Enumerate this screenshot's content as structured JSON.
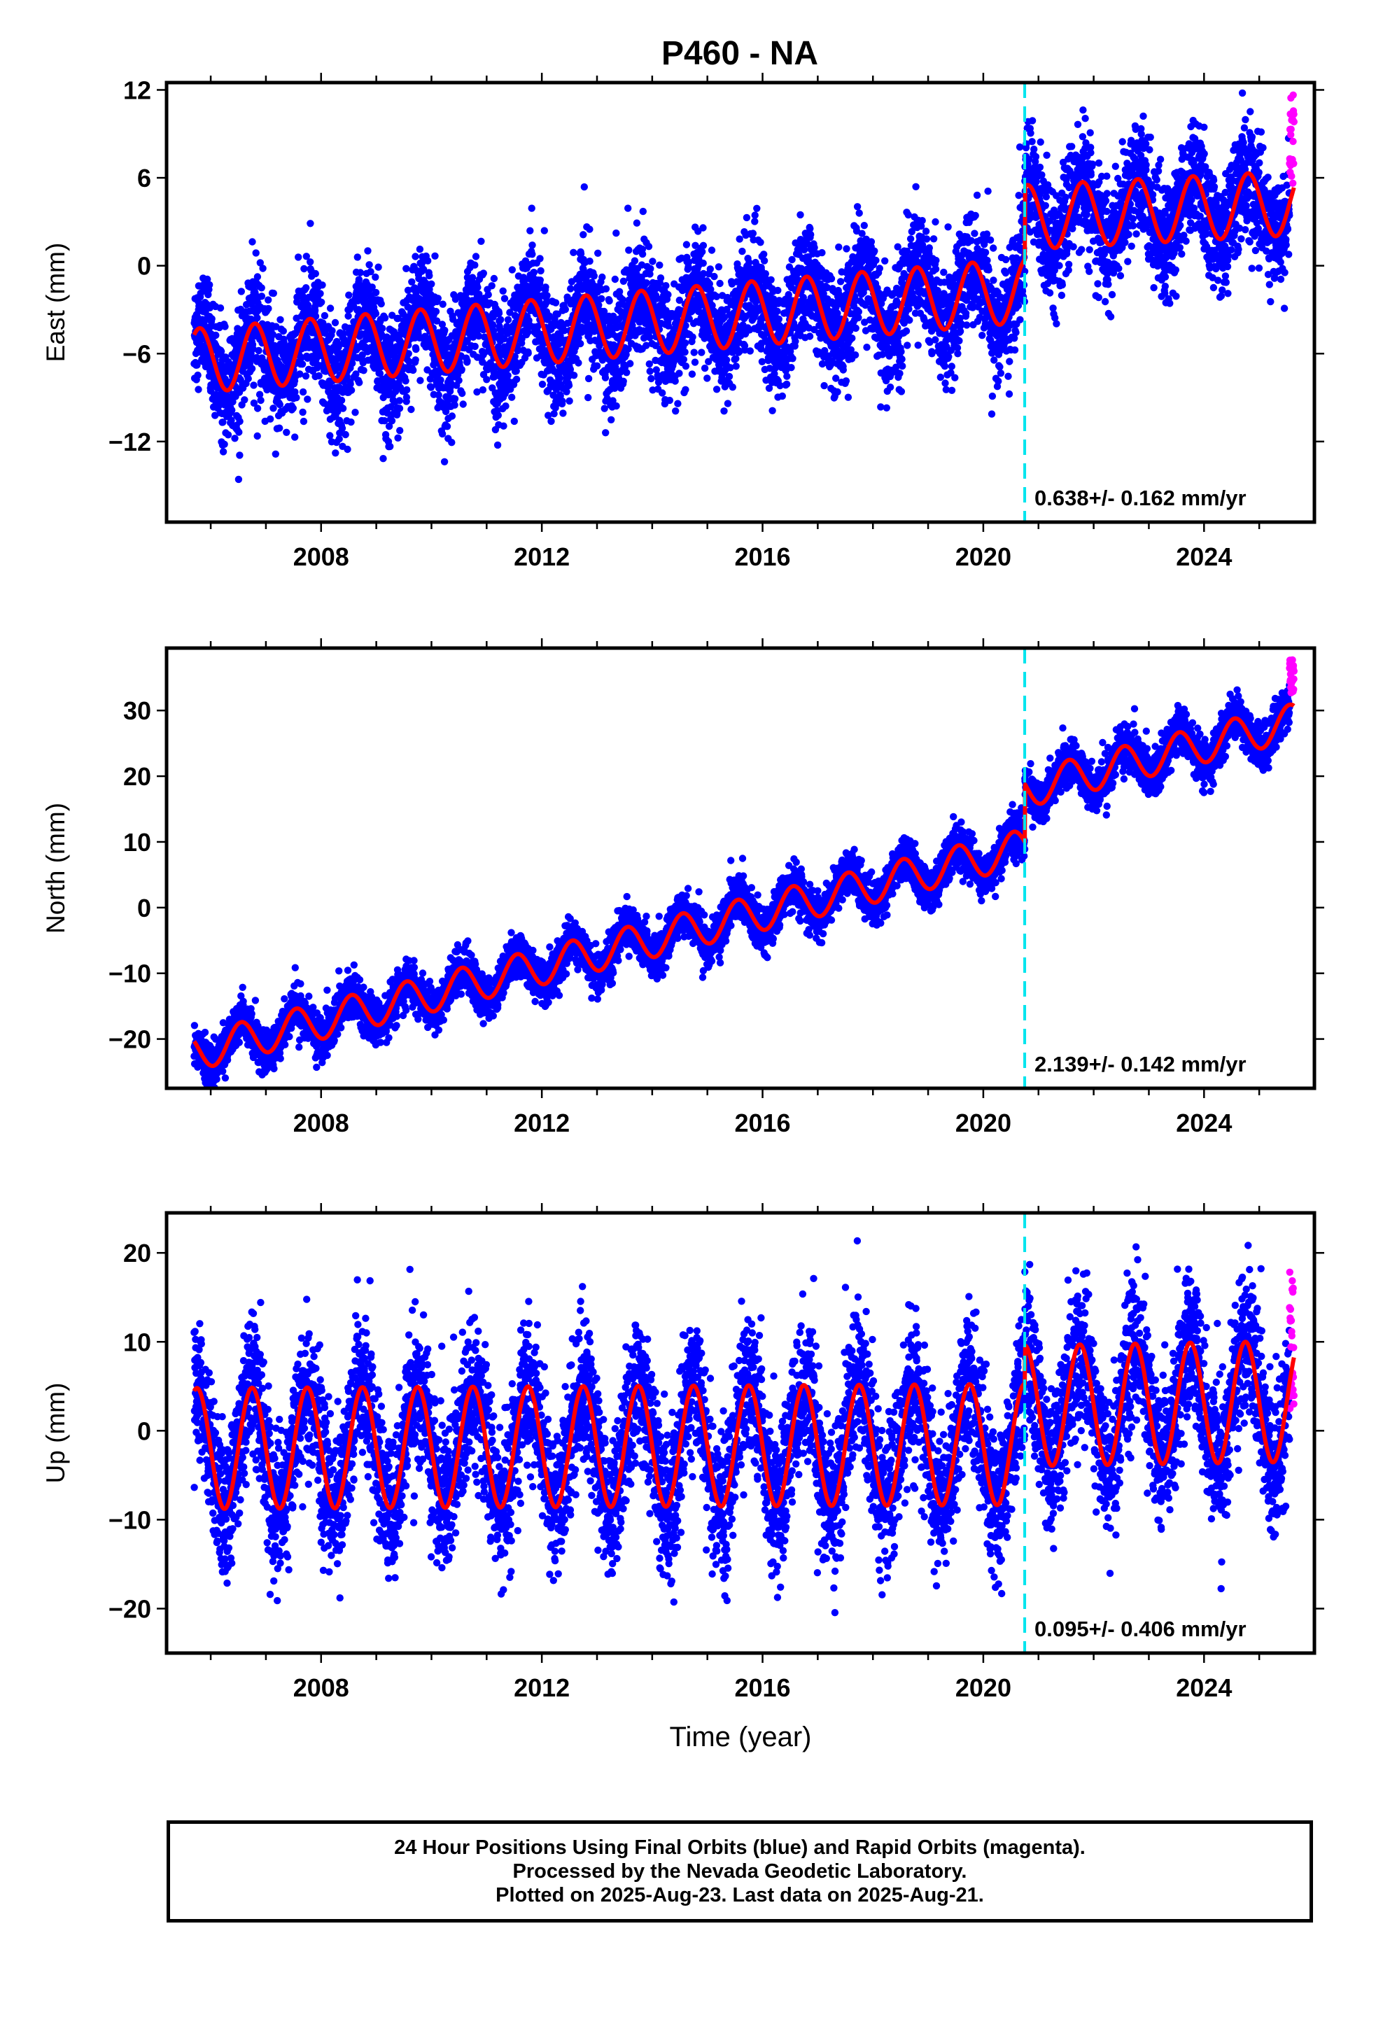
{
  "title": "P460 - NA",
  "colors": {
    "final_orbits": "#0000ff",
    "rapid_orbits": "#ff00ff",
    "model": "#ff0000",
    "event_line": "#00e5ee",
    "axes": "#000000"
  },
  "footer": {
    "line1": "24 Hour Positions Using Final Orbits (blue) and Rapid Orbits (magenta).",
    "line2": "Processed by the Nevada Geodetic Laboratory.",
    "line3": "Plotted on 2025-Aug-23. Last data on 2025-Aug-21."
  },
  "chart_data": [
    {
      "type": "scatter",
      "component": "east",
      "ylabel": "East (mm)",
      "xlabel": "",
      "xlim": [
        2005.2,
        2026.0
      ],
      "ylim": [
        -17.5,
        12.5
      ],
      "yticks": [
        -12,
        -6,
        0,
        6,
        12
      ],
      "xticks": [
        2008,
        2012,
        2016,
        2020,
        2024
      ],
      "rate_label": "0.638+/- 0.162 mm/yr",
      "event_line_x": 2020.75,
      "model": {
        "x0": 2005.7,
        "x1": 2025.63,
        "offset_pre": -6.5,
        "slope_pre": 0.32,
        "offset_post": 3.3,
        "slope_post": 0.2,
        "amplitude": 2.2,
        "phase_peak": 0.8,
        "scatter": 1.9
      },
      "series": [
        {
          "name": "Final Orbits (blue)",
          "x_range": [
            2005.7,
            2025.55
          ],
          "values_summary": "daily positions"
        },
        {
          "name": "Rapid Orbits (magenta)",
          "x_range": [
            2025.55,
            2025.63
          ],
          "y_range": [
            5.5,
            12.0
          ]
        }
      ]
    },
    {
      "type": "scatter",
      "component": "north",
      "ylabel": "North (mm)",
      "xlabel": "",
      "xlim": [
        2005.2,
        2026.0
      ],
      "ylim": [
        -27.5,
        39.5
      ],
      "yticks": [
        -20,
        -10,
        0,
        10,
        20,
        30
      ],
      "xticks": [
        2008,
        2012,
        2016,
        2020,
        2024
      ],
      "rate_label": "2.139+/- 0.142 mm/yr",
      "event_line_x": 2020.75,
      "model": {
        "x0": 2005.7,
        "x1": 2025.63,
        "offset_pre": -22.0,
        "slope_pre": 2.07,
        "offset_post": 18.0,
        "slope_post": 2.1,
        "amplitude": 2.8,
        "phase_peak": 0.55,
        "scatter": 1.6
      },
      "series": [
        {
          "name": "Final Orbits (blue)",
          "x_range": [
            2005.7,
            2025.55
          ],
          "values_summary": "daily positions"
        },
        {
          "name": "Rapid Orbits (magenta)",
          "x_range": [
            2025.55,
            2025.63
          ],
          "y_range": [
            32.5,
            38.0
          ]
        }
      ]
    },
    {
      "type": "scatter",
      "component": "up",
      "ylabel": "Up (mm)",
      "xlabel": "Time (year)",
      "xlim": [
        2005.2,
        2026.0
      ],
      "ylim": [
        -25.0,
        24.5
      ],
      "yticks": [
        -20,
        -10,
        0,
        10,
        20
      ],
      "xticks": [
        2008,
        2012,
        2016,
        2020,
        2024
      ],
      "rate_label": "0.095+/- 0.406 mm/yr",
      "event_line_x": 2020.75,
      "model": {
        "x0": 2005.7,
        "x1": 2025.63,
        "offset_pre": -2.0,
        "slope_pre": 0.03,
        "offset_post": 2.8,
        "slope_post": 0.1,
        "amplitude": 6.8,
        "phase_peak": 0.75,
        "scatter": 4.0
      },
      "series": [
        {
          "name": "Final Orbits (blue)",
          "x_range": [
            2005.7,
            2025.55
          ],
          "values_summary": "daily positions"
        },
        {
          "name": "Rapid Orbits (magenta)",
          "x_range": [
            2025.55,
            2025.63
          ],
          "y_range": [
            2.0,
            18.0
          ]
        }
      ]
    }
  ]
}
